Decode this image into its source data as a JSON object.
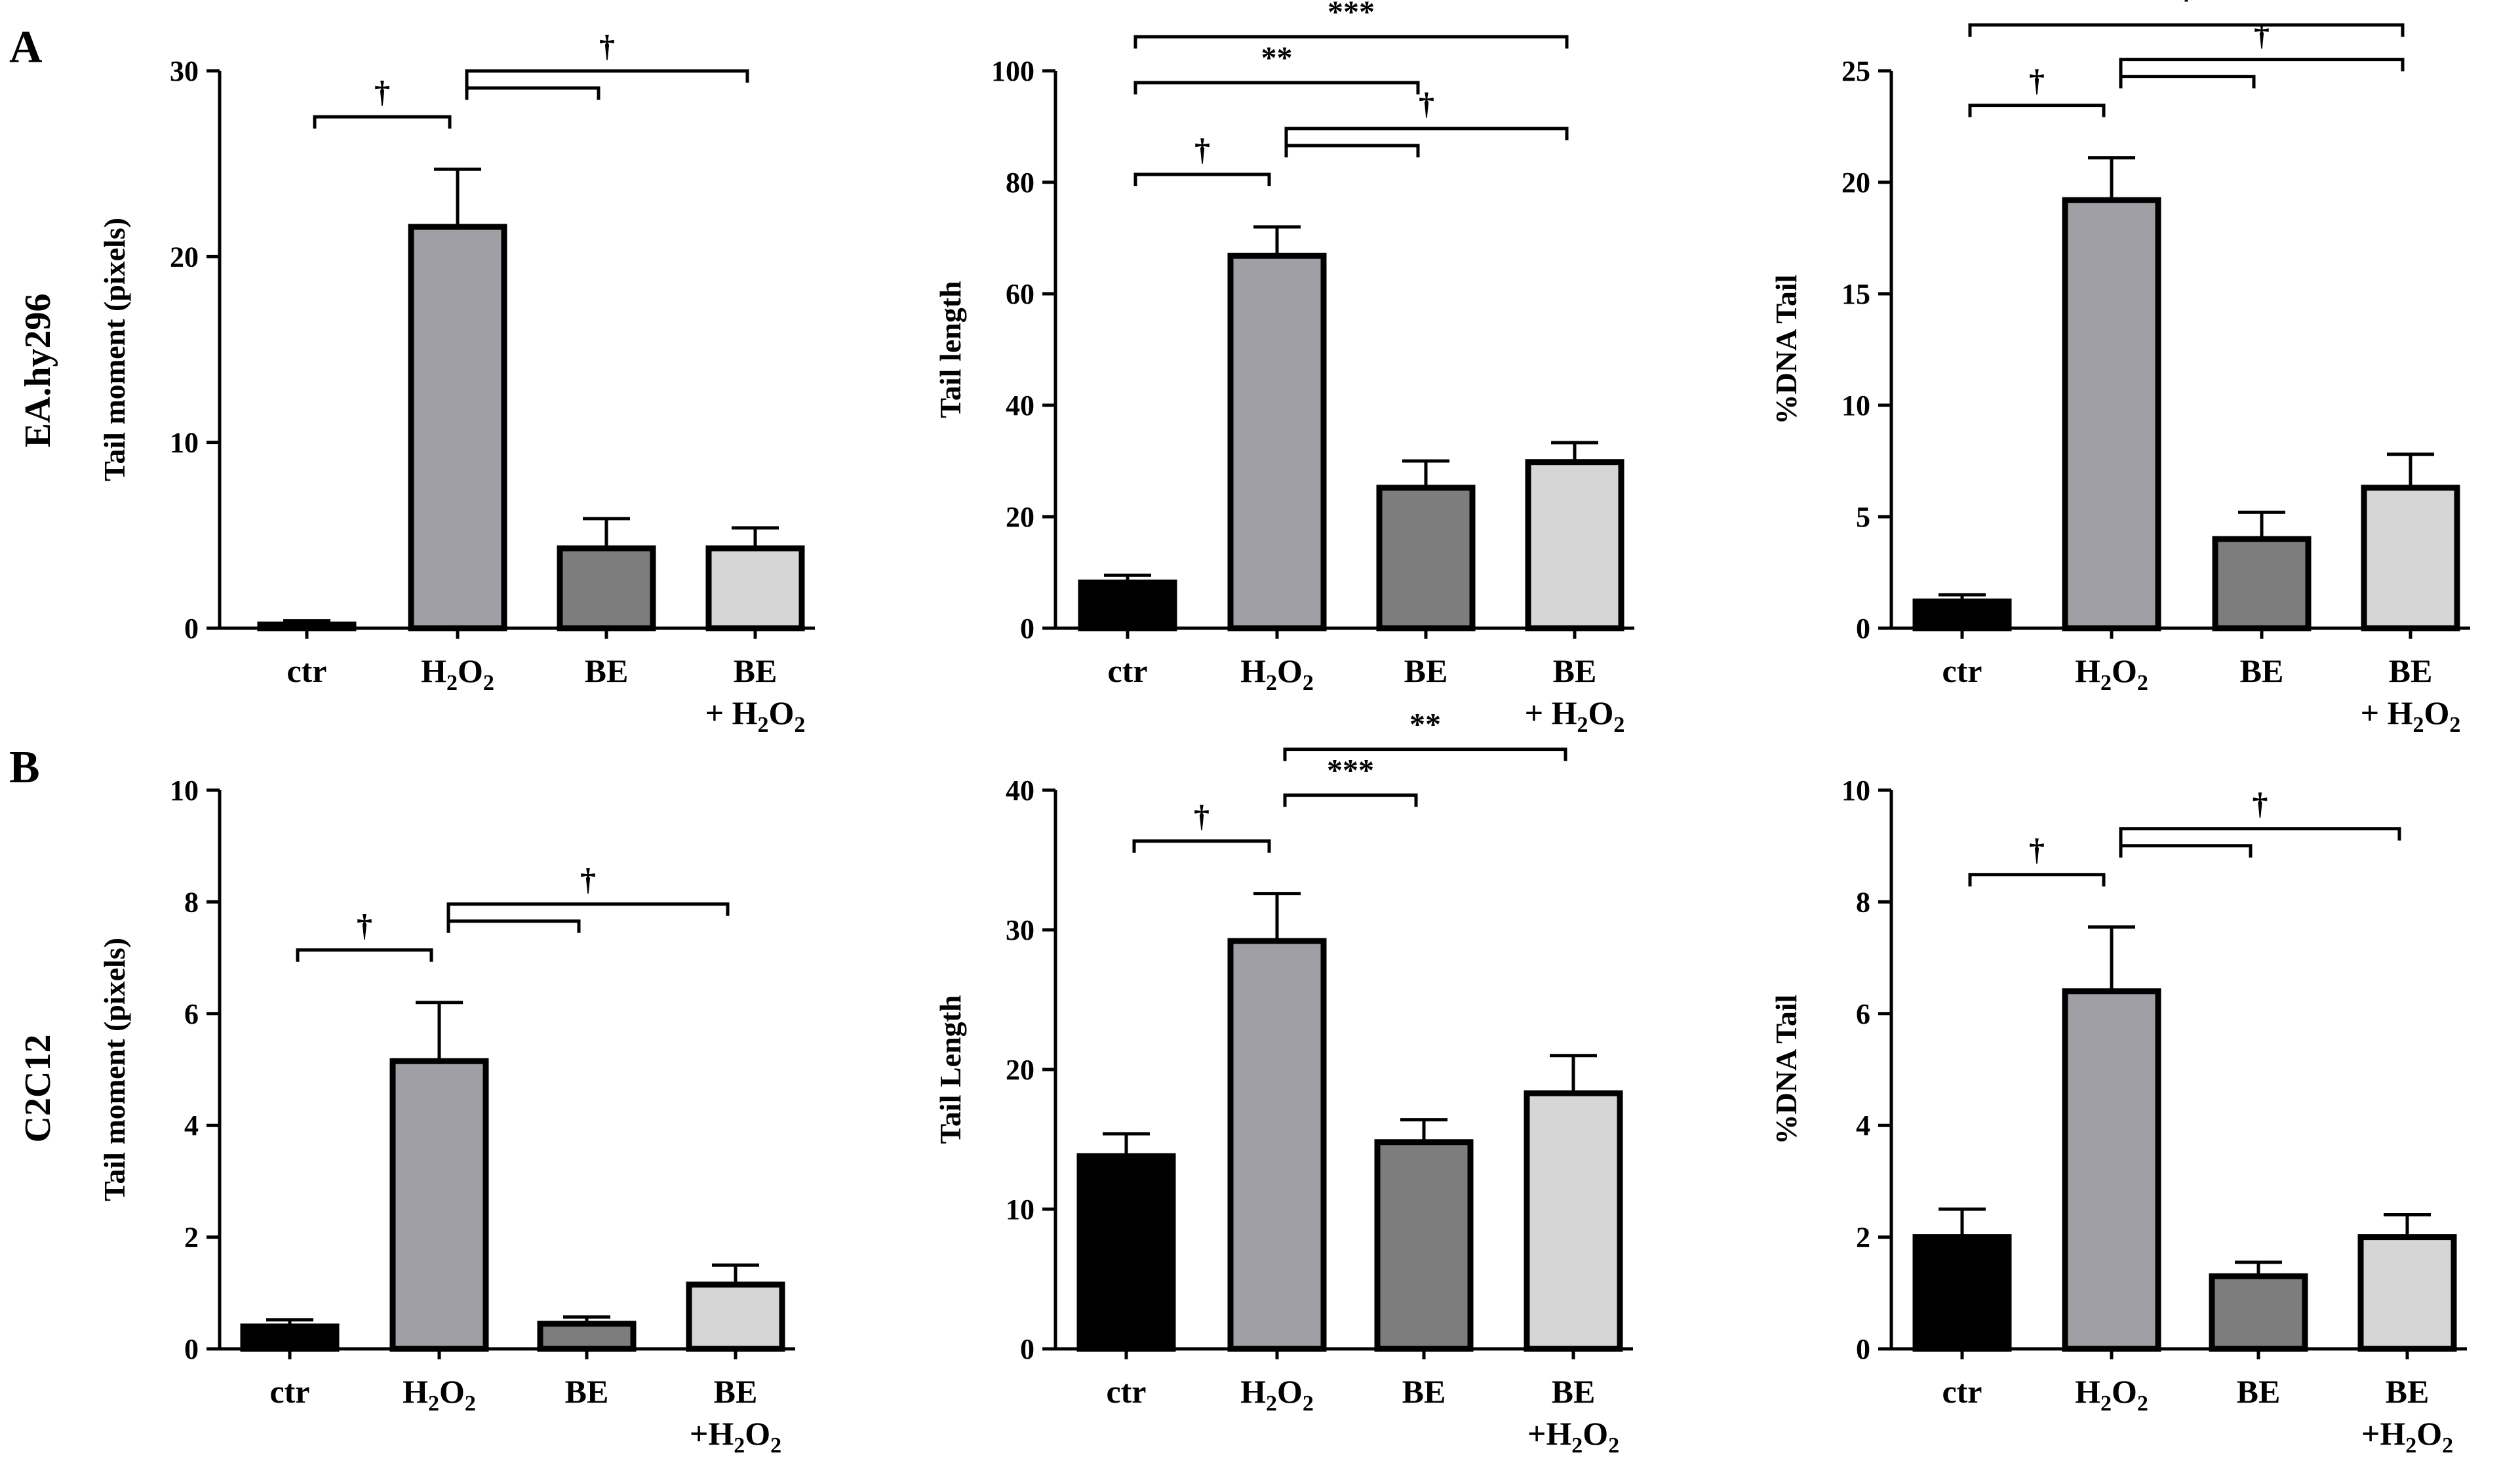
{
  "panels": [
    {
      "letter": "A",
      "row_label": "EA.hy296"
    },
    {
      "letter": "B",
      "row_label": "C2C12"
    }
  ],
  "colors": {
    "ctr": "#000000",
    "h2o2": "#a19fa6",
    "be": "#7d7d7d",
    "beh2o2": "#d6d6d6"
  },
  "chart_data": [
    {
      "type": "bar",
      "panel": "A",
      "title": "",
      "xlabel": "",
      "ylabel": "Tail moment (pixels)",
      "ylim": [
        0,
        30
      ],
      "yticks": [
        "0",
        "10",
        "20",
        "30"
      ],
      "categories": [
        [
          "ctr"
        ],
        [
          "H2O2"
        ],
        [
          "BE"
        ],
        [
          "BE",
          "+ H2O2"
        ]
      ],
      "values": [
        0.2,
        21.6,
        4.3,
        4.3
      ],
      "errors": [
        0.2,
        3.1,
        1.6,
        1.1
      ],
      "significance": [
        {
          "from": 0,
          "to": 1,
          "label": "†"
        },
        {
          "from": 1,
          "to": [
            2,
            3
          ],
          "label": "†"
        }
      ]
    },
    {
      "type": "bar",
      "panel": "A",
      "title": "",
      "xlabel": "",
      "ylabel": "Tail length",
      "ylim": [
        0,
        100
      ],
      "yticks": [
        "0",
        "20",
        "40",
        "60",
        "80",
        "100"
      ],
      "categories": [
        [
          "ctr"
        ],
        [
          "H2O2"
        ],
        [
          "BE"
        ],
        [
          "BE",
          "+ H2O2"
        ]
      ],
      "values": [
        8.2,
        66.8,
        25.2,
        29.8
      ],
      "errors": [
        1.3,
        5.2,
        4.8,
        3.5
      ],
      "significance": [
        {
          "from": 0,
          "to": 1,
          "label": "†"
        },
        {
          "from": 1,
          "to": [
            2,
            3
          ],
          "label": "†"
        },
        {
          "from": 0,
          "to": 2,
          "label": "**"
        },
        {
          "from": 0,
          "to": 3,
          "label": "***"
        }
      ]
    },
    {
      "type": "bar",
      "panel": "A",
      "title": "",
      "xlabel": "",
      "ylabel": "%DNA Tail",
      "ylim": [
        0,
        25
      ],
      "yticks": [
        "0",
        "5",
        "10",
        "15",
        "20",
        "25"
      ],
      "categories": [
        [
          "ctr"
        ],
        [
          "H2O2"
        ],
        [
          "BE"
        ],
        [
          "BE",
          "+ H2O2"
        ]
      ],
      "values": [
        1.2,
        19.2,
        4.0,
        6.3
      ],
      "errors": [
        0.3,
        1.9,
        1.2,
        1.5
      ],
      "significance": [
        {
          "from": 0,
          "to": 1,
          "label": "†"
        },
        {
          "from": 1,
          "to": [
            2,
            3
          ],
          "label": "†"
        },
        {
          "from": 0,
          "to": 3,
          "label": "*"
        }
      ]
    },
    {
      "type": "bar",
      "panel": "B",
      "title": "",
      "xlabel": "",
      "ylabel": "Tail moment (pixels)",
      "ylim": [
        0,
        10
      ],
      "yticks": [
        "0",
        "2",
        "4",
        "6",
        "8",
        "10"
      ],
      "categories": [
        [
          "ctr"
        ],
        [
          "H2O2"
        ],
        [
          "BE"
        ],
        [
          "BE",
          "+H2O2"
        ]
      ],
      "values": [
        0.4,
        5.15,
        0.45,
        1.15
      ],
      "errors": [
        0.12,
        1.05,
        0.12,
        0.35
      ],
      "significance": [
        {
          "from": 0,
          "to": 1,
          "label": "†"
        },
        {
          "from": 1,
          "to": [
            2,
            3
          ],
          "label": "†"
        }
      ]
    },
    {
      "type": "bar",
      "panel": "B",
      "title": "",
      "xlabel": "",
      "ylabel": "Tail Length",
      "ylim": [
        0,
        40
      ],
      "yticks": [
        "0",
        "10",
        "20",
        "30",
        "40"
      ],
      "categories": [
        [
          "ctr"
        ],
        [
          "H2O2"
        ],
        [
          "BE"
        ],
        [
          "BE",
          "+H2O2"
        ]
      ],
      "values": [
        13.8,
        29.2,
        14.8,
        18.3
      ],
      "errors": [
        1.6,
        3.4,
        1.6,
        2.7
      ],
      "significance": [
        {
          "from": 0,
          "to": 1,
          "label": "†"
        },
        {
          "from": 1,
          "to": 2,
          "label": "***"
        },
        {
          "from": 1,
          "to": 3,
          "label": "**"
        }
      ]
    },
    {
      "type": "bar",
      "panel": "B",
      "title": "",
      "xlabel": "",
      "ylabel": "%DNA Tail",
      "ylim": [
        0,
        10
      ],
      "yticks": [
        "0",
        "2",
        "4",
        "6",
        "8",
        "10"
      ],
      "categories": [
        [
          "ctr"
        ],
        [
          "H2O2"
        ],
        [
          "BE"
        ],
        [
          "BE",
          "+H2O2"
        ]
      ],
      "values": [
        2.0,
        6.4,
        1.3,
        2.0
      ],
      "errors": [
        0.5,
        1.15,
        0.25,
        0.4
      ],
      "significance": [
        {
          "from": 0,
          "to": 1,
          "label": "†"
        },
        {
          "from": 1,
          "to": [
            2,
            3
          ],
          "label": "†"
        }
      ]
    }
  ]
}
